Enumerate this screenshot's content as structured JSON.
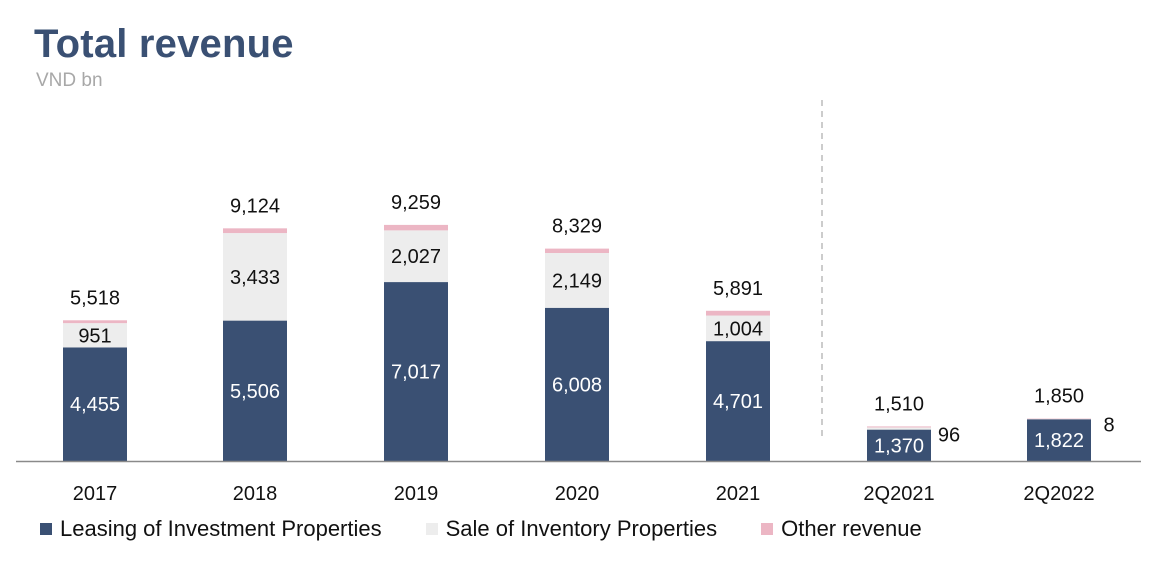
{
  "header": {
    "title": "Total revenue",
    "subtitle": "VND bn"
  },
  "colors": {
    "leasing": "#3a5073",
    "sale": "#ededed",
    "other": "#ecb6c4",
    "axis": "#8a8a8a",
    "divider": "#bbbbbb"
  },
  "chart_data": {
    "type": "bar",
    "stacked": true,
    "title": "Total revenue",
    "ylabel": "VND bn",
    "categories": [
      "2017",
      "2018",
      "2019",
      "2020",
      "2021",
      "2Q2021",
      "2Q2022"
    ],
    "series": [
      {
        "name": "Leasing of Investment Properties",
        "values": [
          4455,
          5506,
          7017,
          6008,
          4701,
          1370,
          1822
        ],
        "labels": [
          "4,455",
          "5,506",
          "7,017",
          "6,008",
          "4,701",
          "1,370",
          "1,822"
        ]
      },
      {
        "name": "Sale of Inventory Properties",
        "values": [
          951,
          3433,
          2027,
          2149,
          1004,
          96,
          8
        ],
        "labels": [
          "951",
          "3,433",
          "2,027",
          "2,149",
          "1,004",
          "96",
          "8"
        ]
      },
      {
        "name": "Other revenue",
        "values": [
          112,
          185,
          215,
          172,
          186,
          44,
          20
        ],
        "labels": []
      }
    ],
    "totals": [
      5518,
      9124,
      9259,
      8329,
      5891,
      1510,
      1850
    ],
    "total_labels": [
      "5,518",
      "9,124",
      "9,259",
      "8,329",
      "5,891",
      "1,510",
      "1,850"
    ],
    "separator_after": "2021",
    "legend_position": "bottom-left"
  }
}
